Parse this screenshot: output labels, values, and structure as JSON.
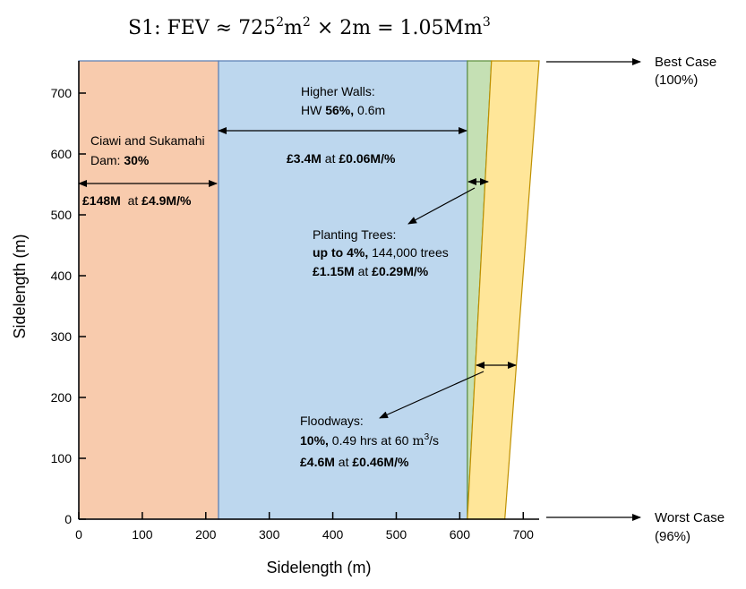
{
  "chart_data": {
    "type": "area",
    "title": {
      "prefix": "S1: FEV ≈ 725",
      "sup1": "2",
      "mid": "m",
      "sup2": "2",
      "suffix": " × 2m = 1.05Mm",
      "sup3": "3"
    },
    "xlabel": "Sidelength (m)",
    "ylabel": "Sidelength (m)",
    "xlim": [
      0,
      725
    ],
    "ylim": [
      0,
      725
    ],
    "xticks": [
      0,
      100,
      200,
      300,
      400,
      500,
      600,
      700
    ],
    "yticks": [
      0,
      100,
      200,
      300,
      400,
      500,
      600,
      700
    ],
    "tick_labels_x": [
      "0",
      "100",
      "200",
      "300",
      "400",
      "500",
      "600",
      "700"
    ],
    "tick_labels_y": [
      "0",
      "100",
      "200",
      "300",
      "400",
      "500",
      "600",
      "700"
    ],
    "regions": [
      {
        "name": "Ciawi and Sukamahi Dam",
        "color": "#f8cbad",
        "edge": "#5b7fb5",
        "polygon": [
          [
            0,
            0
          ],
          [
            220,
            0
          ],
          [
            220,
            750
          ],
          [
            0,
            750
          ]
        ]
      },
      {
        "name": "Higher Walls",
        "color": "#bdd7ee",
        "edge": "#5b7fb5",
        "polygon": [
          [
            220,
            0
          ],
          [
            612,
            0
          ],
          [
            612,
            750
          ],
          [
            220,
            750
          ]
        ]
      },
      {
        "name": "Planting Trees",
        "color": "#c5e0b4",
        "edge": "#5f8f3e",
        "polygon": [
          [
            612,
            0
          ],
          [
            612,
            750
          ],
          [
            650,
            750
          ],
          [
            612,
            0
          ]
        ]
      },
      {
        "name": "Floodways",
        "color": "#ffe699",
        "edge": "#bf9000",
        "polygon": [
          [
            612,
            0
          ],
          [
            650,
            750
          ],
          [
            725,
            750
          ],
          [
            671,
            0
          ]
        ]
      }
    ],
    "annotations": {
      "dam": {
        "line1": "Ciawi and Sukamahi",
        "line2_normal": "Dam: ",
        "line2_bold": "30%",
        "cost_bold1": "£148M",
        "cost_normal": "  at ",
        "cost_bold2": "£4.9M/%"
      },
      "walls": {
        "line1": "Higher Walls:",
        "line2_normal1": "HW ",
        "line2_bold": "56%,",
        "line2_normal2": " 0.6m",
        "cost_bold1": "£3.4M",
        "cost_normal": " at ",
        "cost_bold2": "£0.06M/%"
      },
      "trees": {
        "line1": "Planting Trees:",
        "line2_bold": "up to 4%,",
        "line2_normal": " 144,000 trees",
        "cost_bold1": "£1.15M",
        "cost_normal": " at ",
        "cost_bold2": "£0.29M/%"
      },
      "floodways": {
        "line1": "Floodways:",
        "line2_bold": "10%,",
        "line2_normal": " 0.49 hrs at 60 ",
        "line2_unit": "m",
        "line2_sup": "3",
        "line2_tail": "/s",
        "cost_bold1": "£4.6M",
        "cost_normal": " at ",
        "cost_bold2": "£0.46M/%"
      }
    },
    "side_labels": {
      "best": {
        "line1": "Best Case",
        "line2": "(100%)"
      },
      "worst": {
        "line1": "Worst Case",
        "line2": "(96%)"
      }
    },
    "grid": false,
    "legend": "none"
  }
}
